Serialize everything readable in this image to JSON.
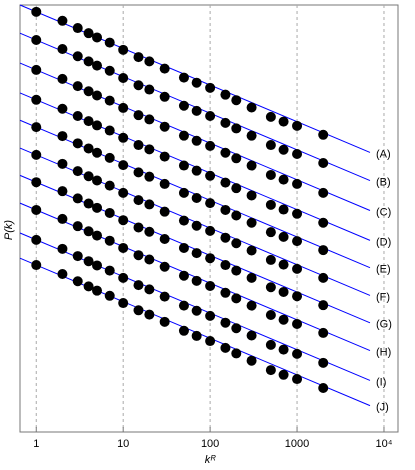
{
  "chart_data": {
    "type": "scatter",
    "x_label": "kᴿ",
    "y_label": "P(k)",
    "x": [
      1,
      2,
      3,
      4,
      5,
      7,
      10,
      15,
      20,
      30,
      50,
      70,
      100,
      150,
      200,
      300,
      500,
      700,
      1000,
      2000
    ],
    "xlim": [
      0.65,
      14500
    ],
    "xticks": [
      1,
      10,
      100,
      1000,
      {
        "value": 10000,
        "label": "10⁴"
      }
    ],
    "x_log": true,
    "ylim": [
      0,
      100
    ],
    "grid": true,
    "marker_color": "#000000",
    "line_color": "#0000ff",
    "series": [
      {
        "name": "(A)",
        "fit": [
          98.4,
          64.1
        ],
        "values": [
          98.4,
          96.3,
          94.6,
          93.4,
          92.4,
          91.2,
          89.5,
          87.8,
          86.8,
          85.1,
          83.0,
          81.8,
          80.6,
          79.0,
          77.7,
          76.0,
          73.8,
          72.7,
          71.7,
          69.6
        ]
      },
      {
        "name": "(B)",
        "fit": [
          91.8,
          57.5
        ],
        "values": [
          91.8,
          89.7,
          88.0,
          86.8,
          85.8,
          84.6,
          82.9,
          81.2,
          80.2,
          78.5,
          76.4,
          75.2,
          74.0,
          72.4,
          71.1,
          69.4,
          67.2,
          66.1,
          65.1,
          63.0
        ]
      },
      {
        "name": "(C)",
        "fit": [
          84.8,
          50.5
        ],
        "values": [
          84.8,
          82.7,
          81.0,
          79.8,
          78.8,
          77.6,
          75.9,
          74.2,
          73.2,
          71.5,
          69.4,
          68.2,
          67.0,
          65.4,
          64.1,
          62.4,
          60.2,
          59.1,
          58.1,
          56.0
        ]
      },
      {
        "name": "(D)",
        "fit": [
          77.8,
          43.5
        ],
        "values": [
          77.8,
          75.7,
          74.0,
          72.8,
          71.8,
          70.6,
          68.9,
          67.2,
          66.2,
          64.5,
          62.4,
          61.2,
          60.0,
          58.4,
          57.1,
          55.4,
          53.2,
          52.1,
          51.1,
          49.0
        ]
      },
      {
        "name": "(E)",
        "fit": [
          71.4,
          37.1
        ],
        "values": [
          71.4,
          69.3,
          67.6,
          66.4,
          65.4,
          64.2,
          62.5,
          60.8,
          59.8,
          58.1,
          56.0,
          54.8,
          53.6,
          52.0,
          50.7,
          49.0,
          46.8,
          45.7,
          44.7,
          42.6
        ]
      },
      {
        "name": "(F)",
        "fit": [
          64.9,
          30.6
        ],
        "values": [
          64.9,
          62.8,
          61.1,
          59.9,
          58.9,
          57.7,
          56.0,
          54.3,
          53.3,
          51.6,
          49.5,
          48.3,
          47.1,
          45.5,
          44.2,
          42.5,
          40.3,
          39.2,
          38.2,
          36.1
        ]
      },
      {
        "name": "(G)",
        "fit": [
          58.5,
          24.2
        ],
        "values": [
          58.5,
          56.4,
          54.7,
          53.5,
          52.5,
          51.3,
          49.6,
          47.9,
          46.9,
          45.2,
          43.1,
          41.9,
          40.7,
          39.1,
          37.8,
          36.1,
          33.9,
          32.8,
          31.8,
          29.7
        ]
      },
      {
        "name": "(H)",
        "fit": [
          52.0,
          17.7
        ],
        "values": [
          52.0,
          49.9,
          48.2,
          47.0,
          46.0,
          44.8,
          43.1,
          41.4,
          40.4,
          38.7,
          36.6,
          35.4,
          34.2,
          32.6,
          31.3,
          29.6,
          27.4,
          26.3,
          25.3,
          23.2
        ]
      },
      {
        "name": "(I)",
        "fit": [
          45.0,
          10.7
        ],
        "values": [
          45.0,
          42.9,
          41.2,
          40.0,
          39.0,
          37.8,
          36.1,
          34.4,
          33.4,
          31.7,
          29.6,
          28.4,
          27.2,
          25.6,
          24.3,
          22.6,
          20.4,
          19.3,
          18.3,
          16.2
        ]
      },
      {
        "name": "(J)",
        "fit": [
          39.1,
          4.8
        ],
        "values": [
          39.1,
          37.0,
          35.3,
          34.1,
          33.1,
          31.9,
          30.2,
          28.5,
          27.5,
          25.8,
          23.7,
          22.5,
          21.3,
          19.7,
          18.4,
          16.7,
          14.5,
          13.4,
          12.4,
          10.3
        ]
      }
    ]
  }
}
